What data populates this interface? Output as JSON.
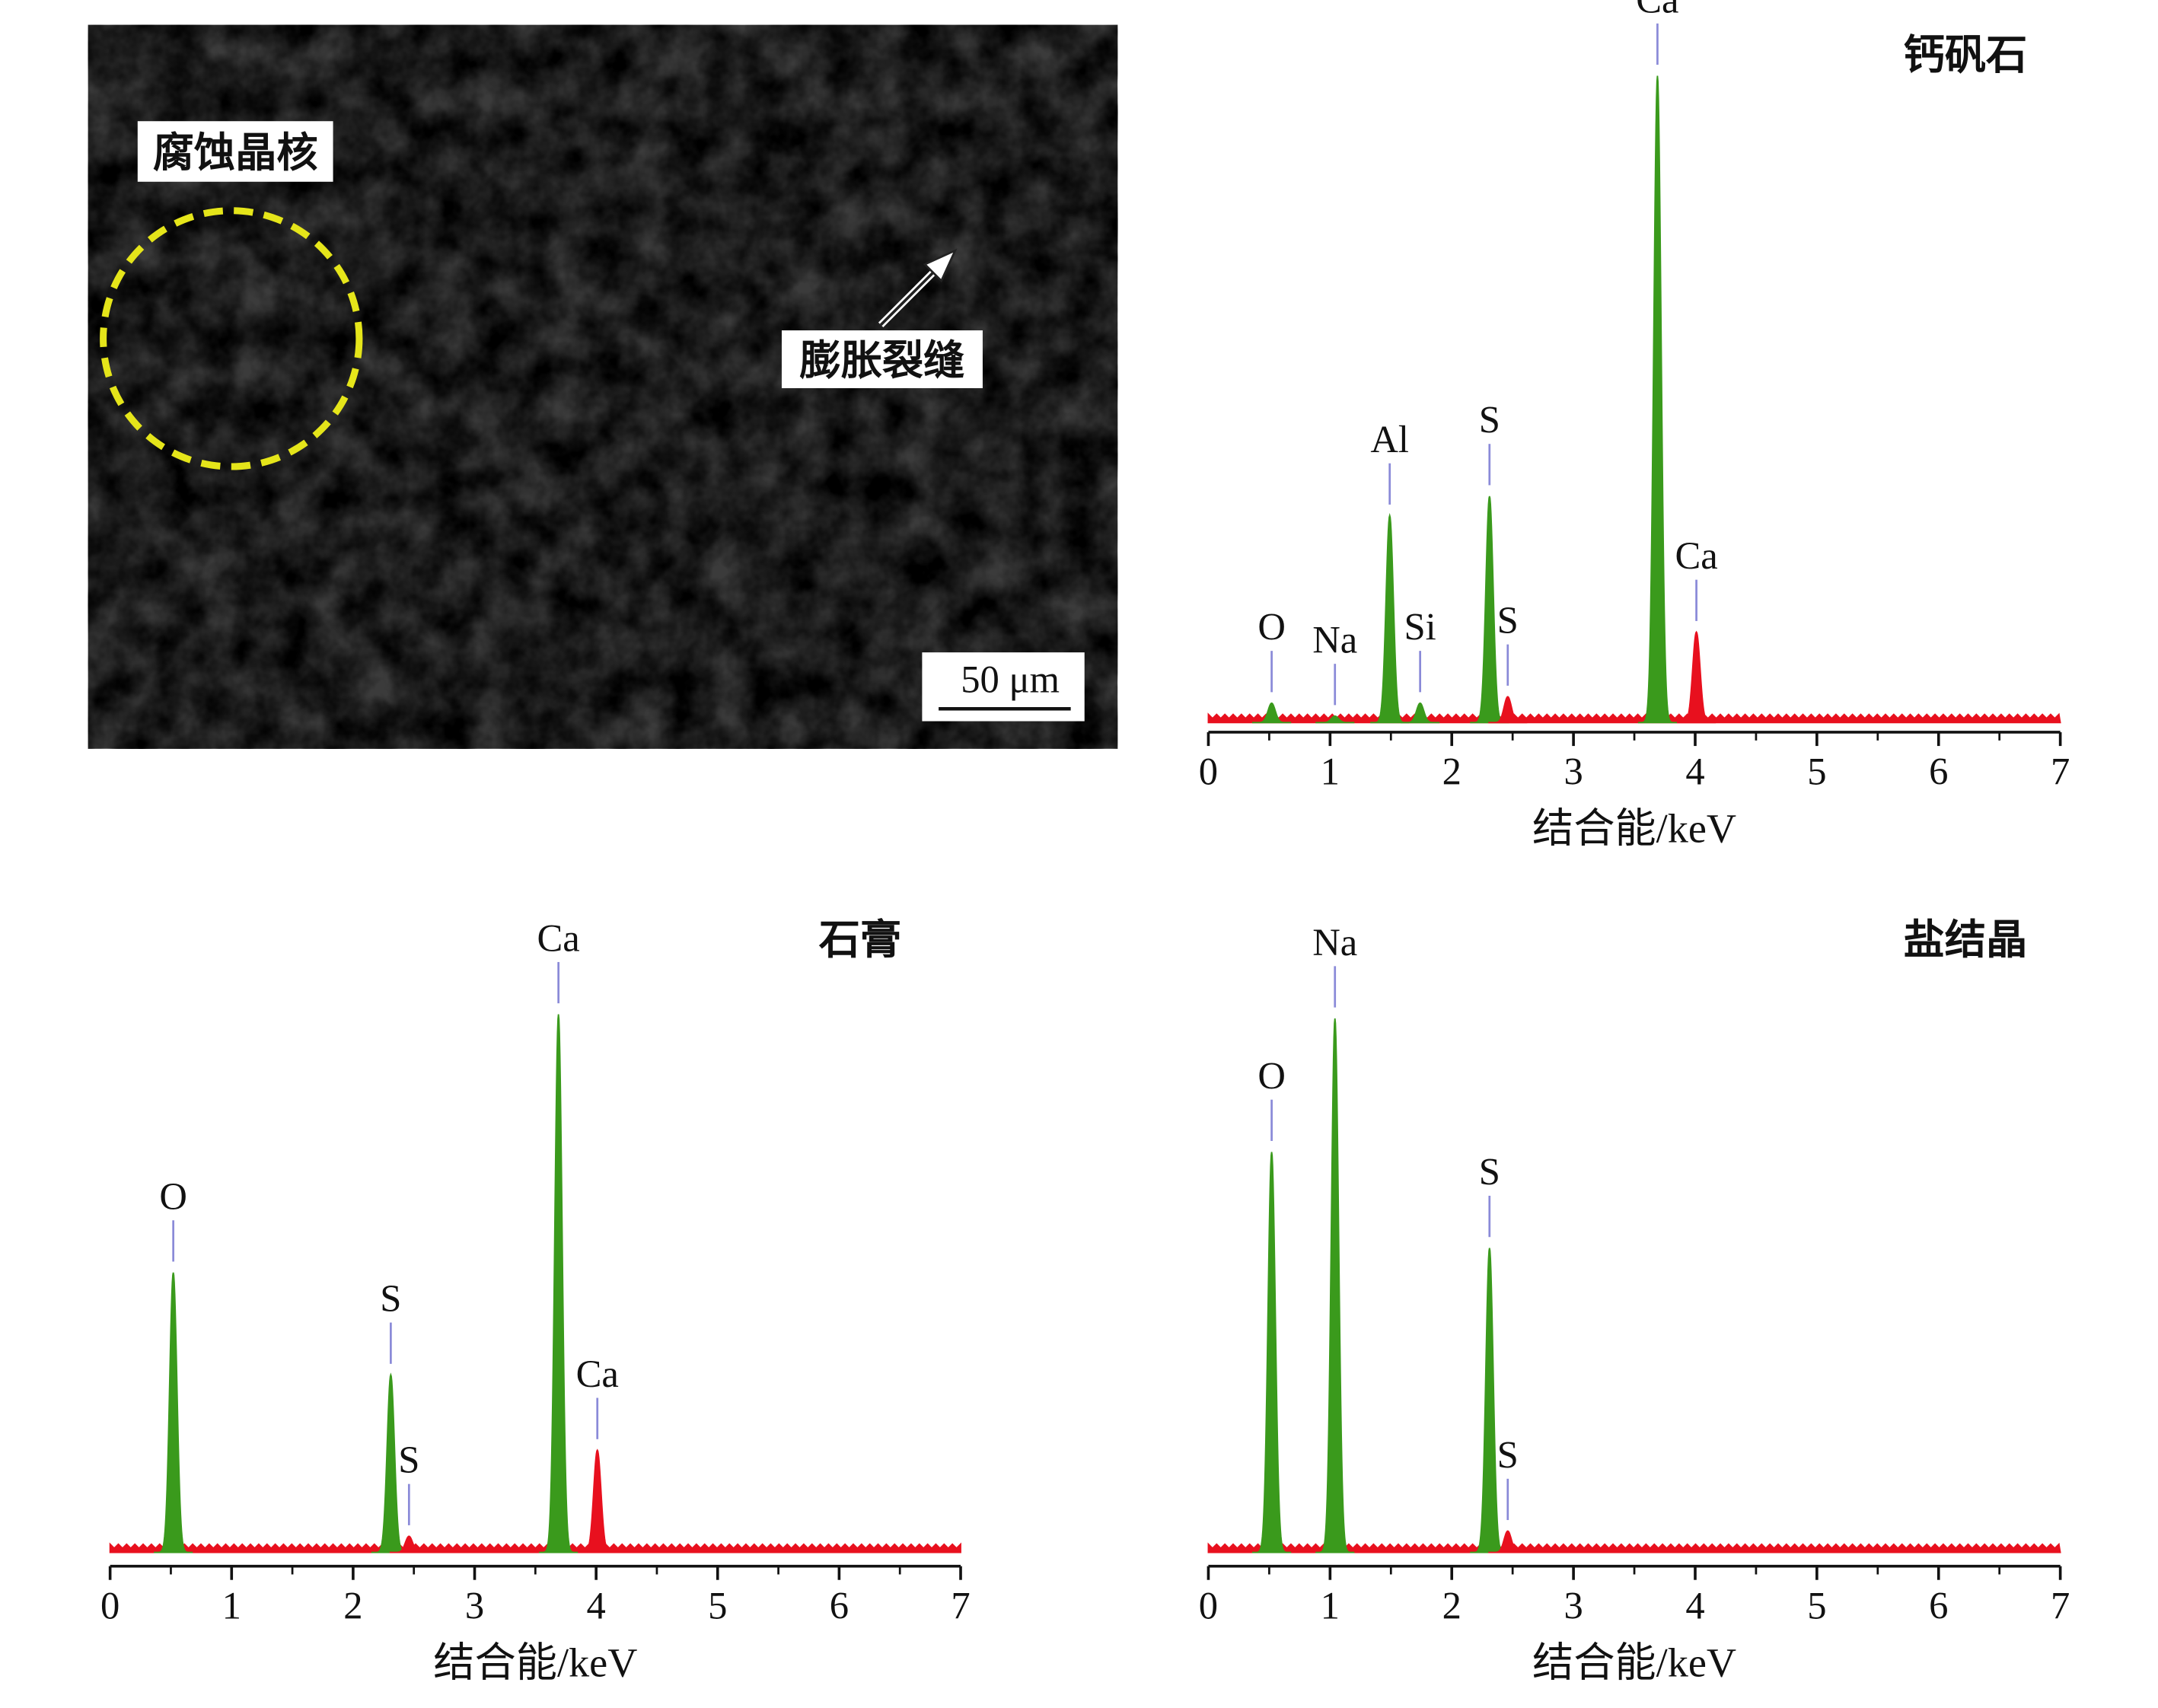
{
  "image": {
    "nucleus_label": "腐蚀晶核",
    "crack_label": "膨胀裂缝",
    "scale_bar": "50 μm"
  },
  "chart_data": [
    {
      "type": "spectrum",
      "title": "钙矾石",
      "x_label": "结合能/keV",
      "xlim": [
        0,
        7
      ],
      "xticks": [
        0,
        1,
        2,
        3,
        4,
        5,
        6,
        7
      ],
      "ylim": [
        0,
        100
      ],
      "peak_color": "#3a9a1c",
      "background_color": "#e8101e",
      "peaks": {
        "labels": [
          "O",
          "Na",
          "Al",
          "Si",
          "S",
          "S",
          "Ca",
          "Ca"
        ],
        "x": [
          0.52,
          1.04,
          1.49,
          1.74,
          2.31,
          2.46,
          3.69,
          4.01
        ],
        "values": [
          3,
          1,
          32,
          3,
          35,
          4,
          100,
          14
        ],
        "colors": [
          "#3a9a1c",
          "#3a9a1c",
          "#3a9a1c",
          "#3a9a1c",
          "#3a9a1c",
          "#e8101e",
          "#3a9a1c",
          "#e8101e"
        ]
      }
    },
    {
      "type": "spectrum",
      "title": "石膏",
      "x_label": "结合能/keV",
      "xlim": [
        0,
        7
      ],
      "xticks": [
        0,
        1,
        2,
        3,
        4,
        5,
        6,
        7
      ],
      "ylim": [
        0,
        100
      ],
      "peak_color": "#3a9a1c",
      "background_color": "#e8101e",
      "peaks": {
        "labels": [
          "O",
          "S",
          "S",
          "Ca",
          "Ca"
        ],
        "x": [
          0.52,
          2.31,
          2.46,
          3.69,
          4.01
        ],
        "values": [
          52,
          33,
          3,
          100,
          19
        ],
        "colors": [
          "#3a9a1c",
          "#3a9a1c",
          "#e8101e",
          "#3a9a1c",
          "#e8101e"
        ]
      }
    },
    {
      "type": "spectrum",
      "title": "盐结晶",
      "x_label": "结合能/keV",
      "xlim": [
        0,
        7
      ],
      "xticks": [
        0,
        1,
        2,
        3,
        4,
        5,
        6,
        7
      ],
      "ylim": [
        0,
        100
      ],
      "peak_color": "#3a9a1c",
      "background_color": "#e8101e",
      "peaks": {
        "labels": [
          "O",
          "Na",
          "S",
          "S"
        ],
        "x": [
          0.52,
          1.04,
          2.31,
          2.46
        ],
        "values": [
          75,
          100,
          57,
          4
        ],
        "colors": [
          "#3a9a1c",
          "#3a9a1c",
          "#3a9a1c",
          "#e8101e"
        ]
      }
    }
  ]
}
